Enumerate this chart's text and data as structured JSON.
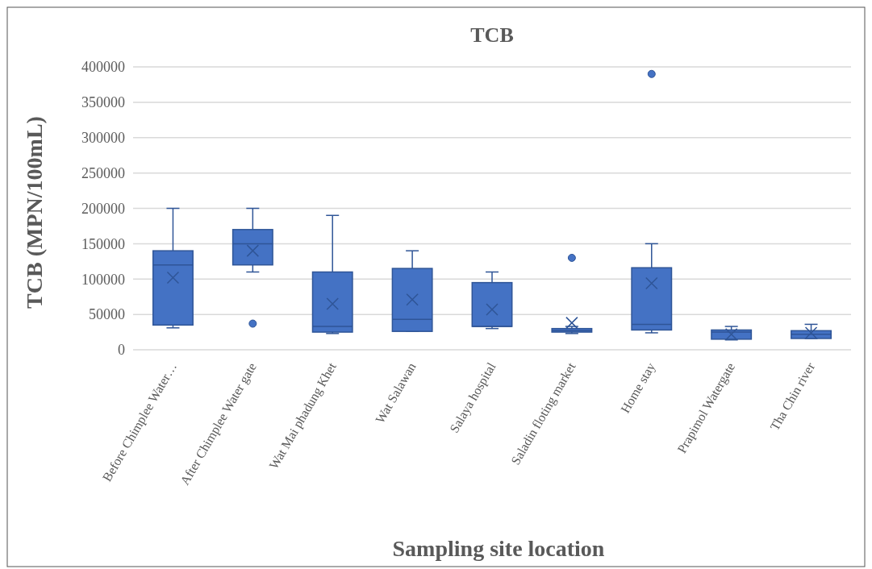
{
  "chart_data": {
    "type": "box",
    "title": "TCB",
    "xlabel": "Sampling site location",
    "ylabel": "TCB (MPN/100mL)",
    "categories": [
      "Before Chimplee Water…",
      "After Chimplee Water gate",
      "Wat Mai phadung Khet",
      "Wat Salawan",
      "Salaya hospital",
      "Saladin floting market",
      "Home stay",
      "Prapimol Watergate",
      "Tha Chin river"
    ],
    "color": "#4472c4",
    "grid": "y",
    "ylim": [
      0,
      400000
    ],
    "yticks": [
      0,
      50000,
      100000,
      150000,
      200000,
      250000,
      300000,
      350000,
      400000
    ],
    "boxes": [
      {
        "low": 31000,
        "q1": 35000,
        "median": 120000,
        "q3": 140000,
        "high": 200000,
        "mean": 102000
      },
      {
        "low": 110000,
        "q1": 120000,
        "median": 150000,
        "q3": 170000,
        "high": 200000,
        "mean": 140000,
        "outliers": [
          37000
        ]
      },
      {
        "low": 23000,
        "q1": 25000,
        "median": 33000,
        "q3": 110000,
        "high": 190000,
        "mean": 65000
      },
      {
        "low": 26000,
        "q1": 26000,
        "median": 43000,
        "q3": 115000,
        "high": 140000,
        "mean": 71000
      },
      {
        "low": 30000,
        "q1": 33000,
        "median": 33000,
        "q3": 95000,
        "high": 110000,
        "mean": 57000
      },
      {
        "low": 23000,
        "q1": 25000,
        "median": 27000,
        "q3": 30000,
        "high": 33000,
        "mean": 38000,
        "outliers": [
          130000
        ]
      },
      {
        "low": 24000,
        "q1": 28000,
        "median": 36000,
        "q3": 116000,
        "high": 150000,
        "mean": 94000,
        "outliers": [
          390000
        ]
      },
      {
        "low": 14000,
        "q1": 15000,
        "median": 25000,
        "q3": 28000,
        "high": 33000,
        "mean": 22000
      },
      {
        "low": 16000,
        "q1": 16000,
        "median": 22000,
        "q3": 27000,
        "high": 36000,
        "mean": 24000
      }
    ]
  }
}
